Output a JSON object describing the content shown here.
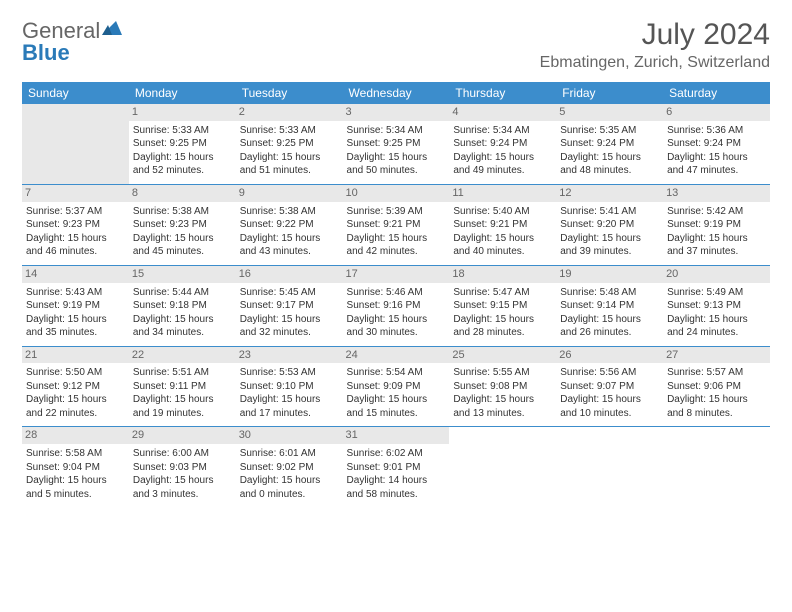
{
  "logo": {
    "text1": "General",
    "text2": "Blue"
  },
  "title": "July 2024",
  "location": "Ebmatingen, Zurich, Switzerland",
  "weekdays": [
    "Sunday",
    "Monday",
    "Tuesday",
    "Wednesday",
    "Thursday",
    "Friday",
    "Saturday"
  ],
  "style": {
    "header_bg": "#3c8dcc",
    "header_fg": "#ffffff",
    "rule_color": "#3c8dcc",
    "daynum_bg": "#e8e8e8",
    "page_bg": "#ffffff",
    "text_color": "#333333",
    "title_fontsize": 30,
    "location_fontsize": 16,
    "weekday_fontsize": 12,
    "cell_fontsize": 10
  },
  "weeks": [
    [
      null,
      {
        "n": "1",
        "sr": "5:33 AM",
        "ss": "9:25 PM",
        "dl": "15 hours and 52 minutes."
      },
      {
        "n": "2",
        "sr": "5:33 AM",
        "ss": "9:25 PM",
        "dl": "15 hours and 51 minutes."
      },
      {
        "n": "3",
        "sr": "5:34 AM",
        "ss": "9:25 PM",
        "dl": "15 hours and 50 minutes."
      },
      {
        "n": "4",
        "sr": "5:34 AM",
        "ss": "9:24 PM",
        "dl": "15 hours and 49 minutes."
      },
      {
        "n": "5",
        "sr": "5:35 AM",
        "ss": "9:24 PM",
        "dl": "15 hours and 48 minutes."
      },
      {
        "n": "6",
        "sr": "5:36 AM",
        "ss": "9:24 PM",
        "dl": "15 hours and 47 minutes."
      }
    ],
    [
      {
        "n": "7",
        "sr": "5:37 AM",
        "ss": "9:23 PM",
        "dl": "15 hours and 46 minutes."
      },
      {
        "n": "8",
        "sr": "5:38 AM",
        "ss": "9:23 PM",
        "dl": "15 hours and 45 minutes."
      },
      {
        "n": "9",
        "sr": "5:38 AM",
        "ss": "9:22 PM",
        "dl": "15 hours and 43 minutes."
      },
      {
        "n": "10",
        "sr": "5:39 AM",
        "ss": "9:21 PM",
        "dl": "15 hours and 42 minutes."
      },
      {
        "n": "11",
        "sr": "5:40 AM",
        "ss": "9:21 PM",
        "dl": "15 hours and 40 minutes."
      },
      {
        "n": "12",
        "sr": "5:41 AM",
        "ss": "9:20 PM",
        "dl": "15 hours and 39 minutes."
      },
      {
        "n": "13",
        "sr": "5:42 AM",
        "ss": "9:19 PM",
        "dl": "15 hours and 37 minutes."
      }
    ],
    [
      {
        "n": "14",
        "sr": "5:43 AM",
        "ss": "9:19 PM",
        "dl": "15 hours and 35 minutes."
      },
      {
        "n": "15",
        "sr": "5:44 AM",
        "ss": "9:18 PM",
        "dl": "15 hours and 34 minutes."
      },
      {
        "n": "16",
        "sr": "5:45 AM",
        "ss": "9:17 PM",
        "dl": "15 hours and 32 minutes."
      },
      {
        "n": "17",
        "sr": "5:46 AM",
        "ss": "9:16 PM",
        "dl": "15 hours and 30 minutes."
      },
      {
        "n": "18",
        "sr": "5:47 AM",
        "ss": "9:15 PM",
        "dl": "15 hours and 28 minutes."
      },
      {
        "n": "19",
        "sr": "5:48 AM",
        "ss": "9:14 PM",
        "dl": "15 hours and 26 minutes."
      },
      {
        "n": "20",
        "sr": "5:49 AM",
        "ss": "9:13 PM",
        "dl": "15 hours and 24 minutes."
      }
    ],
    [
      {
        "n": "21",
        "sr": "5:50 AM",
        "ss": "9:12 PM",
        "dl": "15 hours and 22 minutes."
      },
      {
        "n": "22",
        "sr": "5:51 AM",
        "ss": "9:11 PM",
        "dl": "15 hours and 19 minutes."
      },
      {
        "n": "23",
        "sr": "5:53 AM",
        "ss": "9:10 PM",
        "dl": "15 hours and 17 minutes."
      },
      {
        "n": "24",
        "sr": "5:54 AM",
        "ss": "9:09 PM",
        "dl": "15 hours and 15 minutes."
      },
      {
        "n": "25",
        "sr": "5:55 AM",
        "ss": "9:08 PM",
        "dl": "15 hours and 13 minutes."
      },
      {
        "n": "26",
        "sr": "5:56 AM",
        "ss": "9:07 PM",
        "dl": "15 hours and 10 minutes."
      },
      {
        "n": "27",
        "sr": "5:57 AM",
        "ss": "9:06 PM",
        "dl": "15 hours and 8 minutes."
      }
    ],
    [
      {
        "n": "28",
        "sr": "5:58 AM",
        "ss": "9:04 PM",
        "dl": "15 hours and 5 minutes."
      },
      {
        "n": "29",
        "sr": "6:00 AM",
        "ss": "9:03 PM",
        "dl": "15 hours and 3 minutes."
      },
      {
        "n": "30",
        "sr": "6:01 AM",
        "ss": "9:02 PM",
        "dl": "15 hours and 0 minutes."
      },
      {
        "n": "31",
        "sr": "6:02 AM",
        "ss": "9:01 PM",
        "dl": "14 hours and 58 minutes."
      },
      null,
      null,
      null
    ]
  ],
  "labels": {
    "sunrise": "Sunrise:",
    "sunset": "Sunset:",
    "daylight": "Daylight:"
  }
}
